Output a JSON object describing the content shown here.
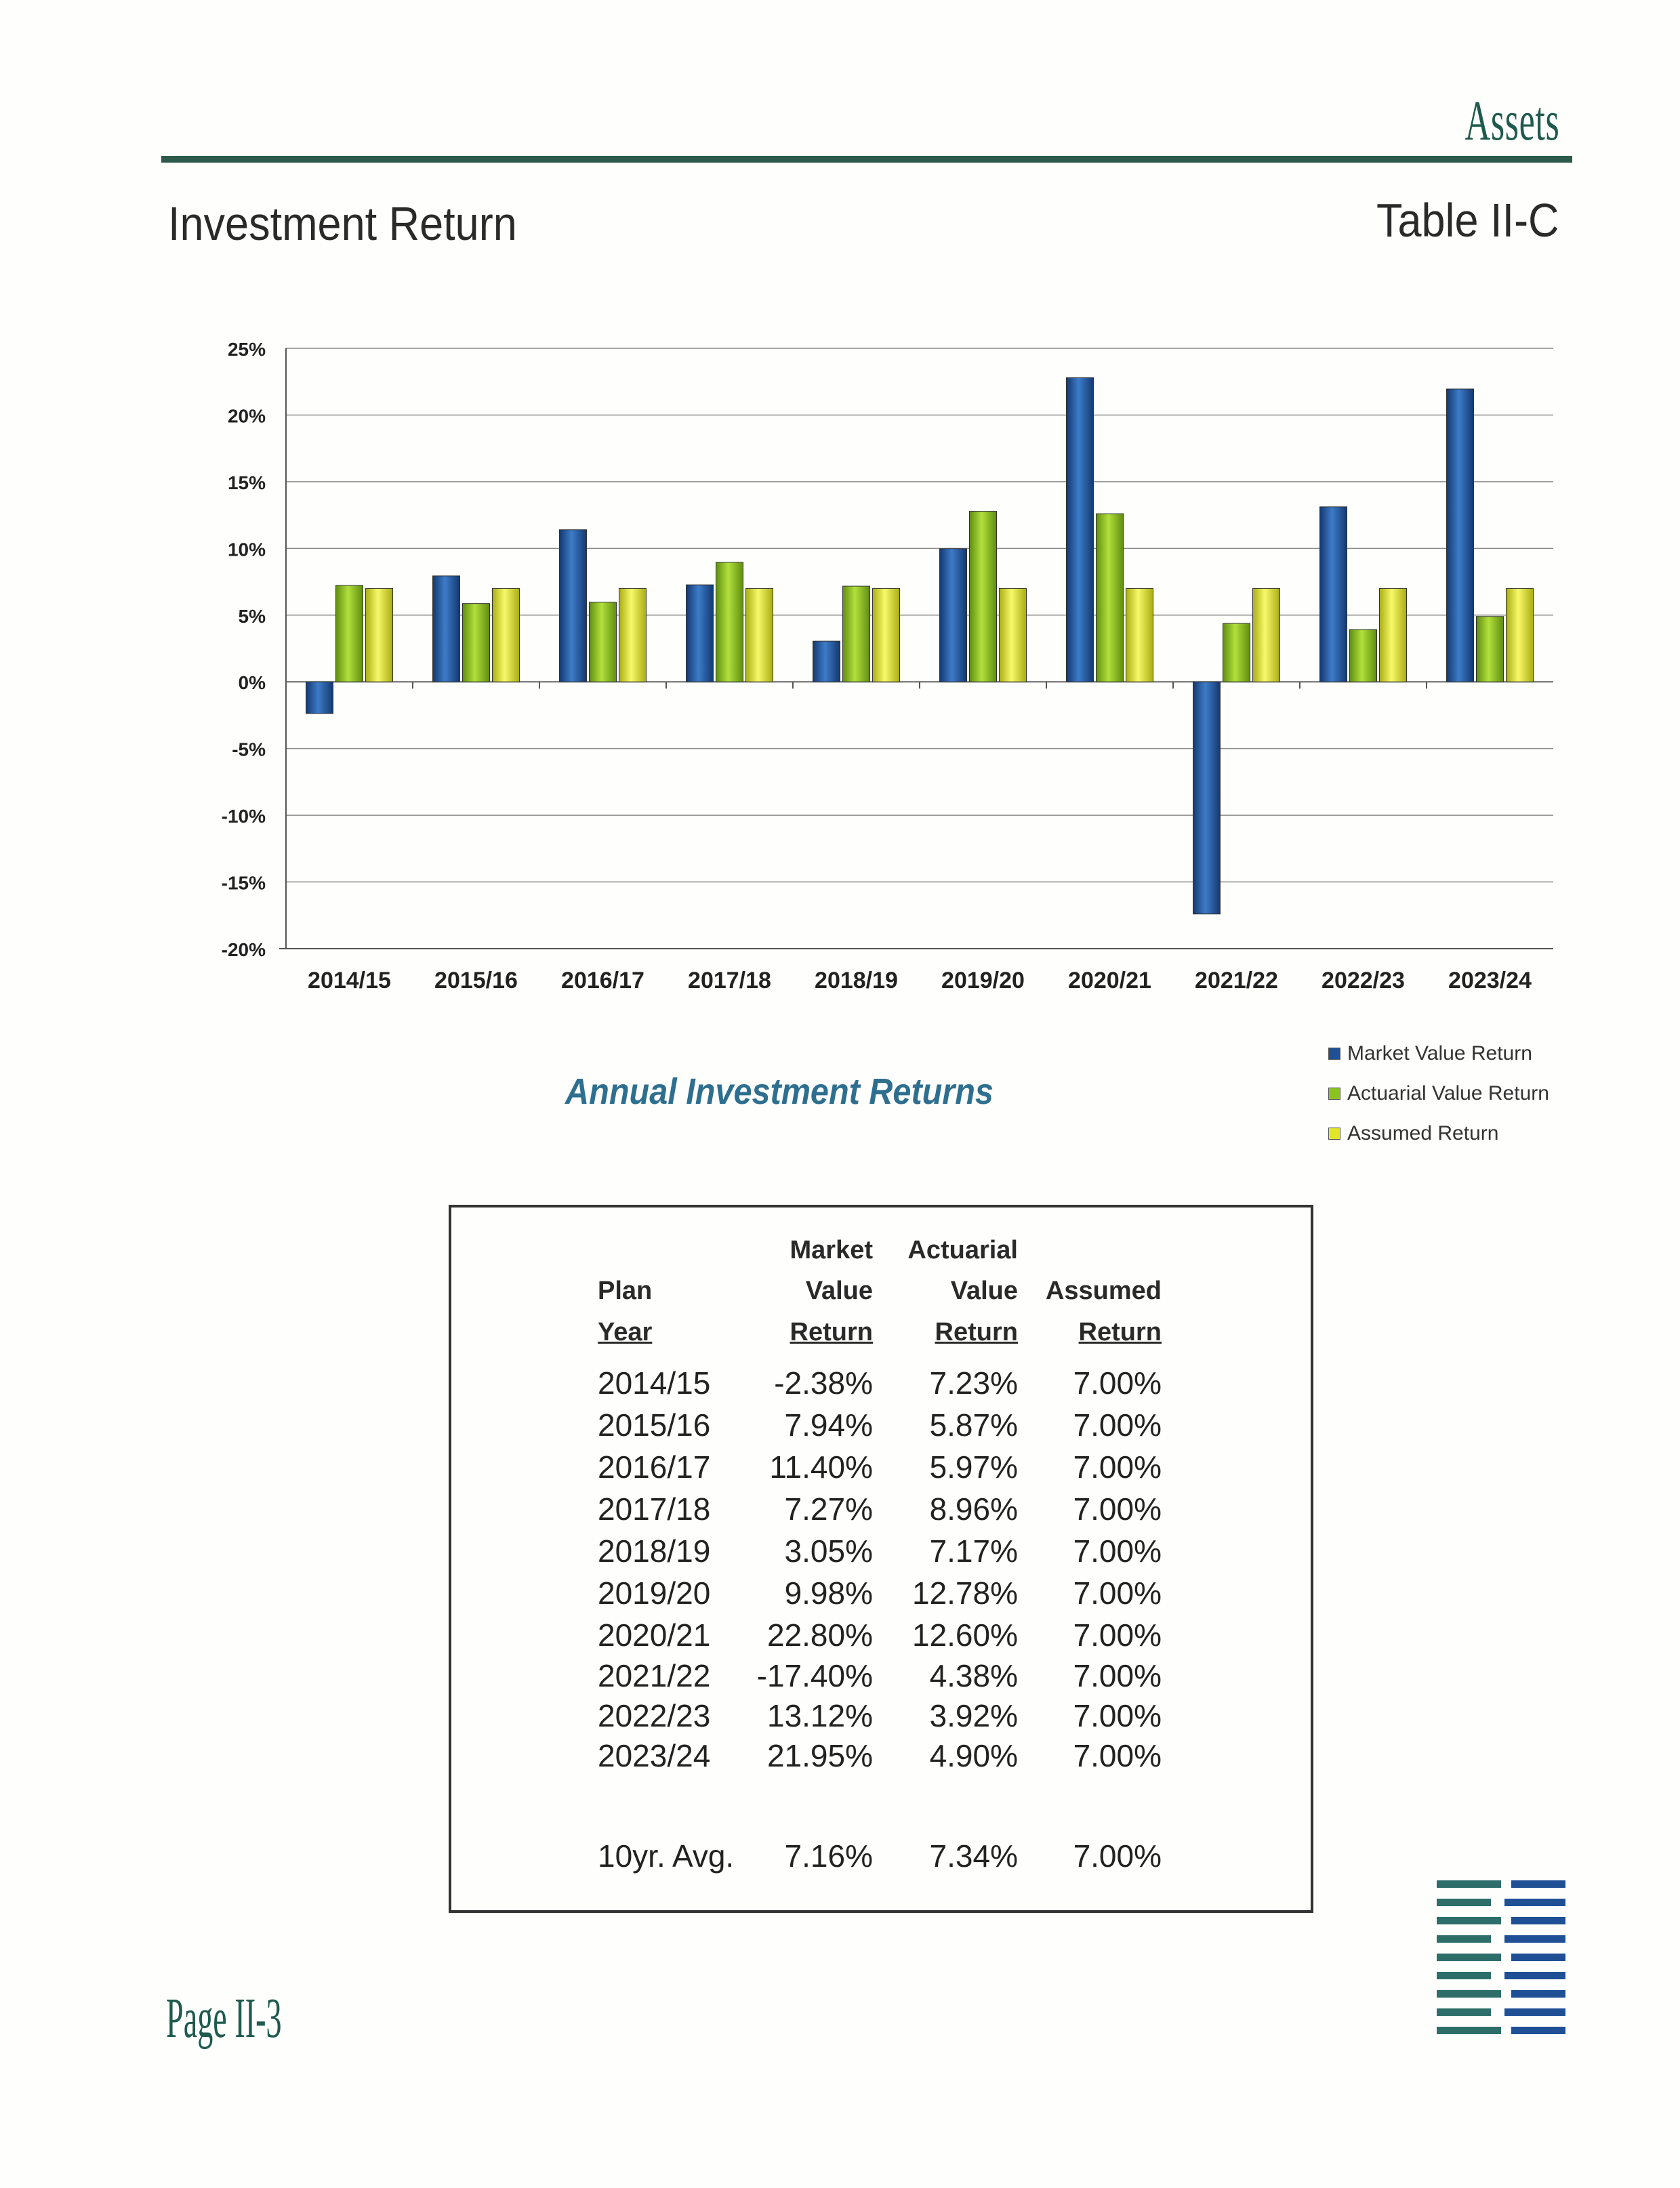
{
  "header": {
    "section": "Assets",
    "title": "Investment Return",
    "table_id": "Table II-C"
  },
  "chart_data": {
    "type": "bar",
    "title": "Annual Investment Returns",
    "categories": [
      "2014/15",
      "2015/16",
      "2016/17",
      "2017/18",
      "2018/19",
      "2019/20",
      "2020/21",
      "2021/22",
      "2022/23",
      "2023/24"
    ],
    "series": [
      {
        "name": "Market Value Return",
        "color": "#1f4f95",
        "values": [
          -2.38,
          7.94,
          11.4,
          7.27,
          3.05,
          9.98,
          22.8,
          -17.4,
          13.12,
          21.95
        ]
      },
      {
        "name": "Actuarial Value Return",
        "color": "#8cc21f",
        "values": [
          7.23,
          5.87,
          5.97,
          8.96,
          7.17,
          12.78,
          12.6,
          4.38,
          3.92,
          4.9
        ]
      },
      {
        "name": "Assumed Return",
        "color": "#e2e62b",
        "values": [
          7.0,
          7.0,
          7.0,
          7.0,
          7.0,
          7.0,
          7.0,
          7.0,
          7.0,
          7.0
        ]
      }
    ],
    "yticks": [
      "25%",
      "20%",
      "15%",
      "10%",
      "5%",
      "0%",
      "-5%",
      "-10%",
      "-15%",
      "-20%"
    ],
    "ylim": [
      -20,
      25
    ],
    "grid": true,
    "legend_position": "bottom-right"
  },
  "table": {
    "headers": {
      "plan": "Plan",
      "year": "Year",
      "market": "Market",
      "value1": "Value",
      "return1": "Return",
      "actuarial": "Actuarial",
      "value2": "Value",
      "return2": "Return",
      "assumed": "Assumed",
      "return3": "Return"
    },
    "rows": [
      {
        "year": "2014/15",
        "market": "-2.38%",
        "actuarial": "7.23%",
        "assumed": "7.00%"
      },
      {
        "year": "2015/16",
        "market": "7.94%",
        "actuarial": "5.87%",
        "assumed": "7.00%"
      },
      {
        "year": "2016/17",
        "market": "11.40%",
        "actuarial": "5.97%",
        "assumed": "7.00%"
      },
      {
        "year": "2017/18",
        "market": "7.27%",
        "actuarial": "8.96%",
        "assumed": "7.00%"
      },
      {
        "year": "2018/19",
        "market": "3.05%",
        "actuarial": "7.17%",
        "assumed": "7.00%"
      },
      {
        "year": "2019/20",
        "market": "9.98%",
        "actuarial": "12.78%",
        "assumed": "7.00%"
      },
      {
        "year": "2020/21",
        "market": "22.80%",
        "actuarial": "12.60%",
        "assumed": "7.00%"
      },
      {
        "year": "2021/22",
        "market": "-17.40%",
        "actuarial": "4.38%",
        "assumed": "7.00%"
      },
      {
        "year": "2022/23",
        "market": "13.12%",
        "actuarial": "3.92%",
        "assumed": "7.00%"
      },
      {
        "year": "2023/24",
        "market": "21.95%",
        "actuarial": "4.90%",
        "assumed": "7.00%"
      }
    ],
    "average": {
      "label": "10yr. Avg.",
      "market": "7.16%",
      "actuarial": "7.34%",
      "assumed": "7.00%"
    }
  },
  "footer": {
    "page": "Page II-3"
  }
}
